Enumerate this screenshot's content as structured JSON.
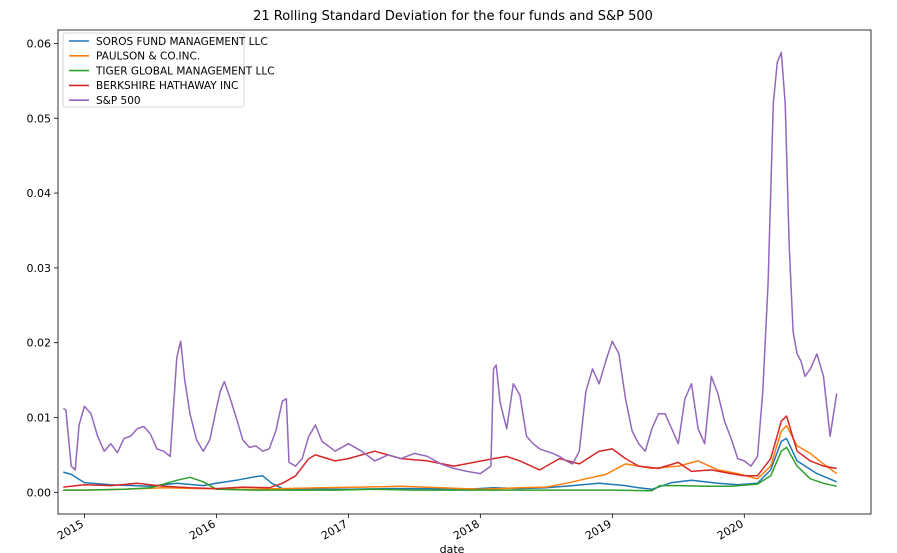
{
  "chart_data": {
    "type": "line",
    "title": "21 Rolling Standard Deviation for the four funds and S&P 500",
    "xlabel": "date",
    "ylabel": "",
    "xlim": [
      2014.8,
      2020.96
    ],
    "ylim": [
      -0.0029,
      0.0618
    ],
    "x_ticks": [
      2015,
      2016,
      2017,
      2018,
      2019,
      2020
    ],
    "x_tick_labels": [
      "2015",
      "2016",
      "2017",
      "2018",
      "2019",
      "2020"
    ],
    "y_ticks": [
      0.0,
      0.01,
      0.02,
      0.03,
      0.04,
      0.05,
      0.06
    ],
    "y_tick_labels": [
      "0.00",
      "0.01",
      "0.02",
      "0.03",
      "0.04",
      "0.05",
      "0.06"
    ],
    "grid": false,
    "legend_position": "top-left",
    "series": [
      {
        "name": "SOROS FUND MANAGEMENT LLC",
        "color": "#1f77b4",
        "x": [
          2014.84,
          2014.9,
          2015.0,
          2015.2,
          2015.5,
          2015.7,
          2015.9,
          2016.0,
          2016.15,
          2016.3,
          2016.35,
          2016.42,
          2016.5,
          2016.6,
          2016.8,
          2017.0,
          2017.3,
          2017.6,
          2017.9,
          2018.1,
          2018.3,
          2018.5,
          2018.7,
          2018.9,
          2019.1,
          2019.2,
          2019.3,
          2019.45,
          2019.6,
          2019.8,
          2019.95,
          2020.1,
          2020.2,
          2020.28,
          2020.32,
          2020.4,
          2020.55,
          2020.7
        ],
        "y": [
          0.0027,
          0.0024,
          0.0013,
          0.001,
          0.0008,
          0.0012,
          0.0009,
          0.0012,
          0.0016,
          0.0021,
          0.0022,
          0.0012,
          0.0005,
          0.0004,
          0.0004,
          0.0004,
          0.0005,
          0.0005,
          0.0004,
          0.0006,
          0.0005,
          0.0006,
          0.0009,
          0.0012,
          0.0009,
          0.0006,
          0.0004,
          0.0013,
          0.0016,
          0.0012,
          0.001,
          0.0012,
          0.003,
          0.0068,
          0.0072,
          0.0042,
          0.0025,
          0.0014
        ]
      },
      {
        "name": "PAULSON & CO.INC.",
        "color": "#ff7f0e",
        "x": [
          2014.84,
          2015.0,
          2015.3,
          2015.6,
          2015.9,
          2016.2,
          2016.5,
          2016.8,
          2017.1,
          2017.4,
          2017.7,
          2018.0,
          2018.3,
          2018.5,
          2018.65,
          2018.8,
          2018.95,
          2019.1,
          2019.3,
          2019.5,
          2019.65,
          2019.8,
          2019.95,
          2020.1,
          2020.2,
          2020.28,
          2020.32,
          2020.4,
          2020.5,
          2020.6,
          2020.7
        ],
        "y": [
          0.0003,
          0.0003,
          0.0004,
          0.0006,
          0.0005,
          0.0004,
          0.0005,
          0.0006,
          0.0007,
          0.0008,
          0.0006,
          0.0004,
          0.0006,
          0.0007,
          0.0012,
          0.0018,
          0.0024,
          0.0038,
          0.0032,
          0.0035,
          0.0042,
          0.003,
          0.0025,
          0.0018,
          0.0035,
          0.0082,
          0.0089,
          0.0062,
          0.0052,
          0.0038,
          0.0025
        ]
      },
      {
        "name": "TIGER GLOBAL MANAGEMENT LLC",
        "color": "#2ca02c",
        "x": [
          2014.84,
          2015.0,
          2015.3,
          2015.5,
          2015.7,
          2015.8,
          2015.9,
          2016.0,
          2016.3,
          2016.6,
          2016.9,
          2017.2,
          2017.5,
          2017.8,
          2018.1,
          2018.4,
          2018.7,
          2019.0,
          2019.3,
          2019.36,
          2019.5,
          2019.7,
          2019.9,
          2020.1,
          2020.2,
          2020.28,
          2020.32,
          2020.4,
          2020.5,
          2020.6,
          2020.7
        ],
        "y": [
          0.0003,
          0.0003,
          0.0004,
          0.0006,
          0.0016,
          0.002,
          0.0014,
          0.0004,
          0.0003,
          0.0003,
          0.0003,
          0.0004,
          0.0003,
          0.0003,
          0.0003,
          0.0003,
          0.0003,
          0.0003,
          0.0002,
          0.0009,
          0.0009,
          0.0008,
          0.0008,
          0.0011,
          0.0022,
          0.0055,
          0.006,
          0.0035,
          0.0018,
          0.0012,
          0.0008
        ]
      },
      {
        "name": "BERKSHIRE HATHAWAY INC",
        "color": "#d62728",
        "x": [
          2014.84,
          2015.0,
          2015.2,
          2015.4,
          2015.6,
          2015.8,
          2016.0,
          2016.2,
          2016.4,
          2016.5,
          2016.6,
          2016.7,
          2016.75,
          2016.9,
          2017.0,
          2017.2,
          2017.4,
          2017.6,
          2017.8,
          2017.95,
          2018.1,
          2018.2,
          2018.3,
          2018.45,
          2018.6,
          2018.75,
          2018.9,
          2019.0,
          2019.1,
          2019.2,
          2019.35,
          2019.5,
          2019.6,
          2019.75,
          2019.9,
          2020.0,
          2020.1,
          2020.2,
          2020.28,
          2020.32,
          2020.4,
          2020.5,
          2020.6,
          2020.7
        ],
        "y": [
          0.0007,
          0.001,
          0.0009,
          0.0012,
          0.0008,
          0.0006,
          0.0005,
          0.0007,
          0.0006,
          0.0012,
          0.0022,
          0.0045,
          0.005,
          0.0042,
          0.0045,
          0.0055,
          0.0045,
          0.0042,
          0.0035,
          0.004,
          0.0045,
          0.0048,
          0.0042,
          0.003,
          0.0045,
          0.0038,
          0.0055,
          0.0058,
          0.0045,
          0.0035,
          0.0032,
          0.004,
          0.0028,
          0.003,
          0.0025,
          0.0022,
          0.0022,
          0.0045,
          0.0095,
          0.0102,
          0.0055,
          0.0042,
          0.0035,
          0.0032
        ]
      },
      {
        "name": "S&P 500",
        "color": "#9467bd",
        "x": [
          2014.84,
          2014.86,
          2014.9,
          2014.93,
          2014.96,
          2015.0,
          2015.05,
          2015.1,
          2015.15,
          2015.2,
          2015.25,
          2015.3,
          2015.35,
          2015.4,
          2015.45,
          2015.5,
          2015.55,
          2015.6,
          2015.65,
          2015.7,
          2015.73,
          2015.76,
          2015.8,
          2015.85,
          2015.9,
          2015.95,
          2016.0,
          2016.03,
          2016.06,
          2016.1,
          2016.15,
          2016.2,
          2016.25,
          2016.3,
          2016.35,
          2016.4,
          2016.45,
          2016.5,
          2016.53,
          2016.55,
          2016.6,
          2016.65,
          2016.7,
          2016.75,
          2016.8,
          2016.9,
          2017.0,
          2017.1,
          2017.2,
          2017.3,
          2017.4,
          2017.5,
          2017.6,
          2017.7,
          2017.8,
          2017.9,
          2018.0,
          2018.08,
          2018.1,
          2018.12,
          2018.15,
          2018.2,
          2018.25,
          2018.3,
          2018.35,
          2018.4,
          2018.45,
          2018.5,
          2018.55,
          2018.6,
          2018.65,
          2018.7,
          2018.75,
          2018.8,
          2018.85,
          2018.9,
          2018.95,
          2019.0,
          2019.05,
          2019.1,
          2019.15,
          2019.2,
          2019.25,
          2019.3,
          2019.35,
          2019.4,
          2019.45,
          2019.5,
          2019.55,
          2019.6,
          2019.65,
          2019.7,
          2019.75,
          2019.8,
          2019.85,
          2019.9,
          2019.95,
          2020.0,
          2020.05,
          2020.1,
          2020.14,
          2020.18,
          2020.22,
          2020.25,
          2020.28,
          2020.31,
          2020.34,
          2020.37,
          2020.4,
          2020.43,
          2020.46,
          2020.5,
          2020.55,
          2020.6,
          2020.65,
          2020.7
        ],
        "y": [
          0.0112,
          0.011,
          0.0035,
          0.003,
          0.009,
          0.0115,
          0.0105,
          0.0075,
          0.0055,
          0.0065,
          0.0053,
          0.0072,
          0.0075,
          0.0085,
          0.0088,
          0.0078,
          0.0058,
          0.0055,
          0.0048,
          0.018,
          0.0202,
          0.015,
          0.0105,
          0.007,
          0.0055,
          0.007,
          0.0112,
          0.0135,
          0.0148,
          0.0128,
          0.01,
          0.007,
          0.006,
          0.0062,
          0.0055,
          0.0058,
          0.0082,
          0.0122,
          0.0125,
          0.004,
          0.0035,
          0.0045,
          0.0075,
          0.009,
          0.0068,
          0.0055,
          0.0065,
          0.0055,
          0.0042,
          0.005,
          0.0045,
          0.0052,
          0.0048,
          0.0038,
          0.0032,
          0.0028,
          0.0025,
          0.0035,
          0.0165,
          0.017,
          0.012,
          0.0085,
          0.0145,
          0.013,
          0.0075,
          0.0065,
          0.0058,
          0.0055,
          0.0052,
          0.0048,
          0.0042,
          0.0038,
          0.0055,
          0.0135,
          0.0165,
          0.0145,
          0.0175,
          0.0202,
          0.0185,
          0.0125,
          0.0082,
          0.0065,
          0.0055,
          0.0085,
          0.0105,
          0.0105,
          0.0085,
          0.0065,
          0.0125,
          0.0145,
          0.0085,
          0.0065,
          0.0155,
          0.0132,
          0.0095,
          0.0072,
          0.0045,
          0.0042,
          0.0035,
          0.0048,
          0.0135,
          0.028,
          0.052,
          0.0575,
          0.0588,
          0.052,
          0.033,
          0.0215,
          0.0185,
          0.0175,
          0.0155,
          0.0165,
          0.0185,
          0.0155,
          0.0075,
          0.0132
        ]
      }
    ]
  }
}
